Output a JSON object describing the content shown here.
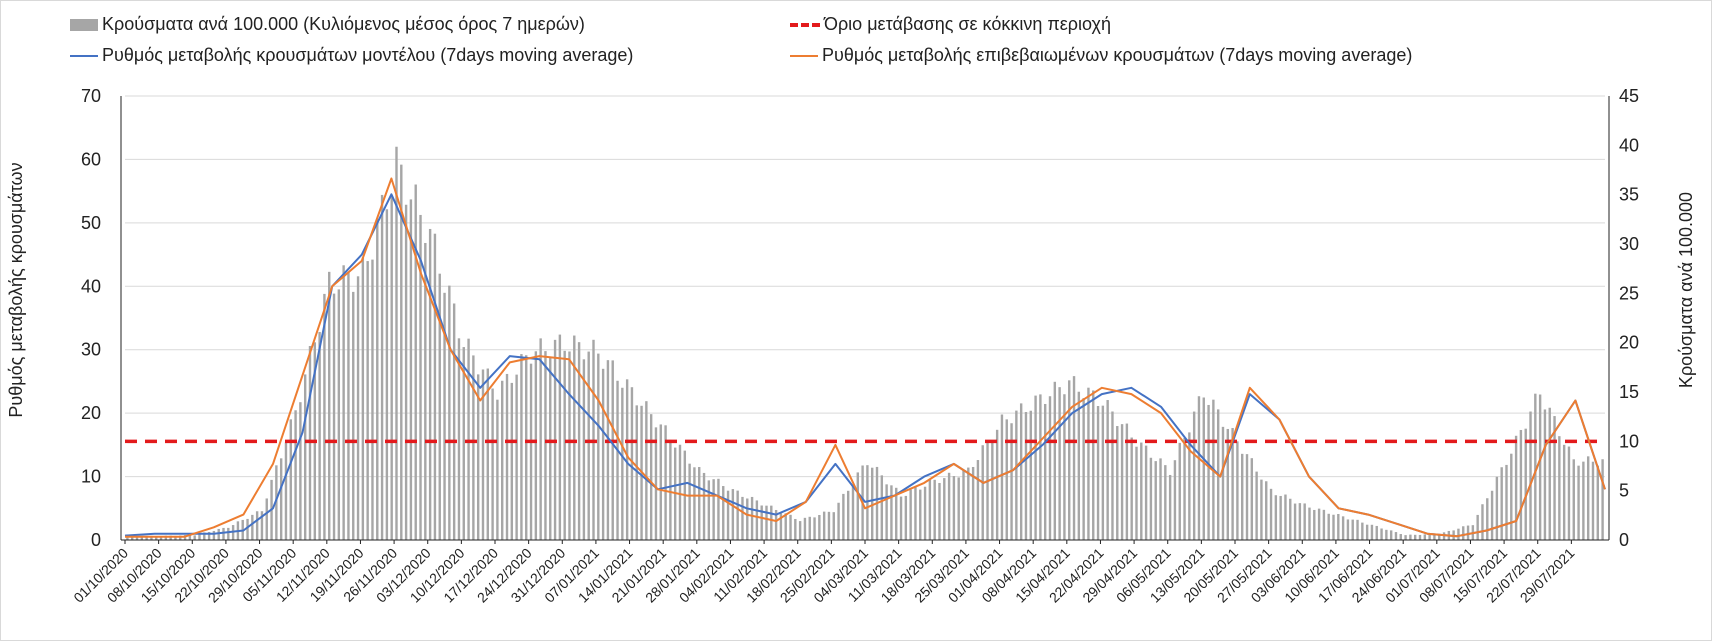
{
  "chart_data": {
    "type": "bar+line",
    "legend": [
      {
        "name": "Κρούσματα ανά 100.000 (Κυλιόμενος μέσος όρος 7 ημερών)",
        "color": "#a6a6a6",
        "kind": "bar"
      },
      {
        "name": "Όριο μετάβασης σε κόκκινη περιοχή",
        "color": "#e31a1c",
        "kind": "dash"
      },
      {
        "name": "Ρυθμός μεταβολής κρουσμάτων μοντέλου (7days moving average)",
        "color": "#4472c4",
        "kind": "line"
      },
      {
        "name": "Ρυθμός μεταβολής επιβεβαιωμένων κρουσμάτων (7days moving average)",
        "color": "#ed7d31",
        "kind": "line"
      }
    ],
    "ylabel_left": "Ρυθμός μεταβολής κρουσμάτων",
    "ylabel_right": "Κρούσματα ανά 100.000",
    "ylim_left": [
      0,
      70
    ],
    "ylim_right": [
      0,
      45
    ],
    "yticks_left": [
      "0",
      "10",
      "20",
      "30",
      "40",
      "50",
      "60",
      "70"
    ],
    "yticks_right": [
      "0",
      "5",
      "10",
      "15",
      "20",
      "25",
      "30",
      "35",
      "40",
      "45"
    ],
    "xtick_labels": [
      "01/10/2020",
      "08/10/2020",
      "15/10/2020",
      "22/10/2020",
      "29/10/2020",
      "05/11/2020",
      "12/11/2020",
      "19/11/2020",
      "26/11/2020",
      "03/12/2020",
      "10/12/2020",
      "17/12/2020",
      "24/12/2020",
      "31/12/2020",
      "07/01/2021",
      "14/01/2021",
      "21/01/2021",
      "28/01/2021",
      "04/02/2021",
      "11/02/2021",
      "18/02/2021",
      "25/02/2021",
      "04/03/2021",
      "11/03/2021",
      "18/03/2021",
      "25/03/2021",
      "01/04/2021",
      "08/04/2021",
      "15/04/2021",
      "22/04/2021",
      "29/04/2021",
      "06/05/2021",
      "13/05/2021",
      "20/05/2021",
      "27/05/2021",
      "03/06/2021",
      "10/06/2021",
      "17/06/2021",
      "24/06/2021",
      "01/07/2021",
      "08/07/2021",
      "15/07/2021",
      "22/07/2021",
      "29/07/2021"
    ],
    "grid": true,
    "red_threshold_right_axis": 10,
    "weekly_cases_per_100k": [
      0.4,
      0.4,
      0.5,
      1.3,
      3,
      13,
      26,
      27,
      38,
      31,
      20,
      15,
      19,
      20,
      19,
      15,
      11,
      7,
      5,
      3.5,
      2,
      3,
      8,
      4.5,
      6,
      7,
      12,
      14,
      16,
      14,
      10,
      7,
      15,
      10,
      5,
      3.5,
      2.5,
      1.5,
      0.5,
      0.6,
      1.6,
      8,
      15,
      8
    ],
    "model_rate": [
      0.7,
      1,
      1,
      1,
      1.5,
      5,
      17,
      40,
      45,
      54.5,
      44,
      30,
      24,
      29,
      28.5,
      23,
      18,
      12,
      8,
      9,
      7,
      5,
      4,
      6,
      12,
      6,
      7,
      10,
      12,
      9,
      11,
      15,
      20,
      23,
      24,
      21,
      15,
      10,
      23,
      19,
      10,
      5,
      4,
      2.5,
      1,
      0.6,
      1.5,
      3,
      15,
      22,
      8
    ],
    "confirmed_rate": [
      0.5,
      0.5,
      0.5,
      2,
      4,
      12,
      26,
      40,
      44,
      57,
      42,
      30,
      22,
      28,
      29,
      28.5,
      22,
      13,
      8,
      7,
      7,
      4,
      3,
      6,
      15,
      5,
      7,
      9,
      12,
      9,
      11,
      16,
      21,
      24,
      23,
      20,
      14,
      10,
      24,
      19,
      10,
      5,
      4,
      2.5,
      1,
      0.6,
      1.5,
      3,
      15,
      22,
      8
    ]
  }
}
